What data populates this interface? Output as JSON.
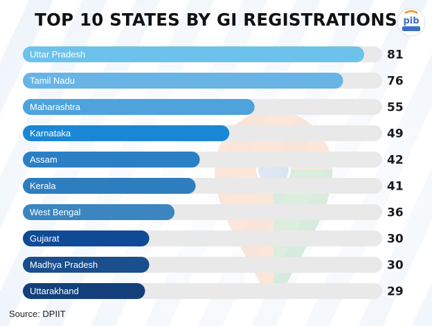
{
  "title": "TOP 10 STATES BY GI REGISTRATIONS",
  "source": "Source: DPIIT",
  "logo": {
    "icon": "pib-logo-icon",
    "text": "pib"
  },
  "colors": {
    "track": "#e9e9e9",
    "value_text": "#1a1a1a",
    "bar_palette": [
      "#6cc2ea",
      "#68b4e4",
      "#4ea3dd",
      "#1a86d6",
      "#2b7fc4",
      "#2e7ebf",
      "#3b85c1",
      "#0f4a96",
      "#1b4e8c",
      "#13407a"
    ]
  },
  "chart_data": {
    "type": "bar",
    "orientation": "horizontal",
    "title": "TOP 10 STATES BY GI REGISTRATIONS",
    "categories": [
      "Uttar Pradesh",
      "Tamil Nadu",
      "Maharashtra",
      "Karnataka",
      "Assam",
      "Kerala",
      "West Bengal",
      "Gujarat",
      "Madhya Pradesh",
      "Uttarakhand"
    ],
    "values": [
      81,
      76,
      55,
      49,
      42,
      41,
      36,
      30,
      30,
      29
    ],
    "xlim": [
      0,
      81
    ],
    "grid": false,
    "legend": "none",
    "data_labels": true
  }
}
